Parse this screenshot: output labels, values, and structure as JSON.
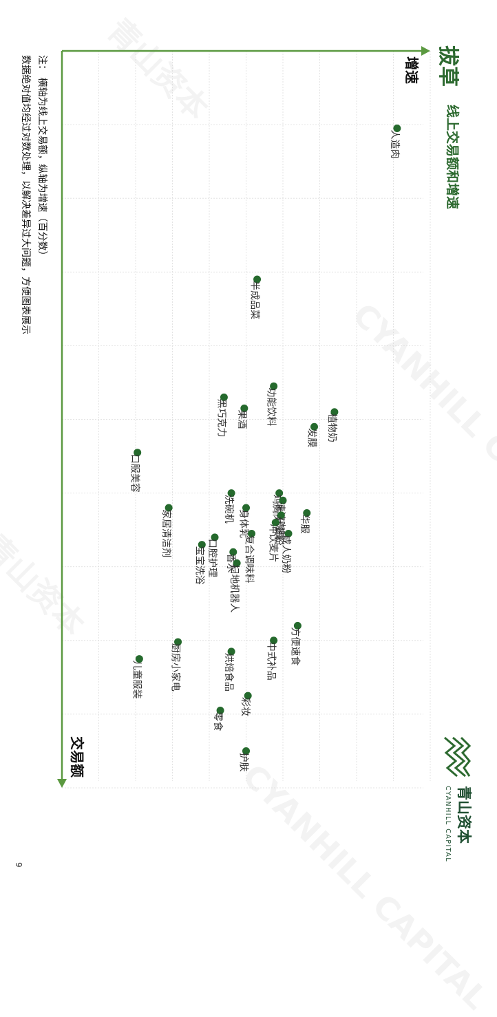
{
  "header": {
    "title": "拔草",
    "subtitle": "线上交易额和增速"
  },
  "notes": [
    "注：  横轴为线上交易额，纵轴为增速（百分数）",
    "数据绝对值均经过对数处理，以解决差异过大问题，方便图表展示"
  ],
  "brand": {
    "name_cn": "青山资本",
    "name_en": "CYANHILL CAPITAL"
  },
  "watermark": {
    "text_cn": "青山资本",
    "text_en": "CYANHILL CAPITAL"
  },
  "page_number": "9",
  "colors": {
    "accent": "#2d6a30",
    "point": "#256a2d",
    "axis": "#5b9940",
    "grid": "#dddddd"
  },
  "chart_data": {
    "type": "scatter",
    "xlabel": "交易额",
    "ylabel": "增速",
    "grid": true,
    "points": [
      {
        "label": "人造肉",
        "x": 1.05,
        "y": 9.1
      },
      {
        "label": "半成品菜",
        "x": 3.1,
        "y": 5.3
      },
      {
        "label": "功能饮料",
        "x": 4.55,
        "y": 5.75
      },
      {
        "label": "植物奶",
        "x": 4.9,
        "y": 7.4
      },
      {
        "label": "黑巧克力",
        "x": 4.7,
        "y": 4.4
      },
      {
        "label": "果酒",
        "x": 4.85,
        "y": 4.95
      },
      {
        "label": "发膜",
        "x": 5.1,
        "y": 6.85
      },
      {
        "label": "口服美容",
        "x": 5.45,
        "y": 2.05
      },
      {
        "label": "鸡胸肉",
        "x": 6.0,
        "y": 5.9
      },
      {
        "label": "洗碗机",
        "x": 6.0,
        "y": 4.6
      },
      {
        "label": "速溶咖啡",
        "x": 6.1,
        "y": 6.0
      },
      {
        "label": "代餐粉",
        "x": 6.3,
        "y": 5.95
      },
      {
        "label": "华服",
        "x": 6.27,
        "y": 6.65
      },
      {
        "label": "身体乳",
        "x": 6.2,
        "y": 5.0
      },
      {
        "label": "冲饮麦片",
        "x": 6.4,
        "y": 5.8
      },
      {
        "label": "家居清洁剂",
        "x": 6.2,
        "y": 2.9
      },
      {
        "label": "成人奶粉",
        "x": 6.55,
        "y": 6.15
      },
      {
        "label": "复合调味料",
        "x": 6.55,
        "y": 5.15
      },
      {
        "label": "口腔护理",
        "x": 6.6,
        "y": 4.15
      },
      {
        "label": "宝宝洗浴",
        "x": 6.7,
        "y": 3.8
      },
      {
        "label": "香水",
        "x": 6.8,
        "y": 4.65
      },
      {
        "label": "扫地机器人",
        "x": 6.95,
        "y": 4.75
      },
      {
        "label": "方便速食",
        "x": 7.8,
        "y": 6.4
      },
      {
        "label": "中式补品",
        "x": 8.0,
        "y": 5.75
      },
      {
        "label": "厨房小家电",
        "x": 8.02,
        "y": 3.15
      },
      {
        "label": "烘焙食品",
        "x": 8.15,
        "y": 4.6
      },
      {
        "label": "儿童服装",
        "x": 8.25,
        "y": 2.1
      },
      {
        "label": "彩妆",
        "x": 8.75,
        "y": 5.05
      },
      {
        "label": "零食",
        "x": 8.95,
        "y": 4.3
      },
      {
        "label": "护肤",
        "x": 9.5,
        "y": 5.0
      }
    ]
  }
}
